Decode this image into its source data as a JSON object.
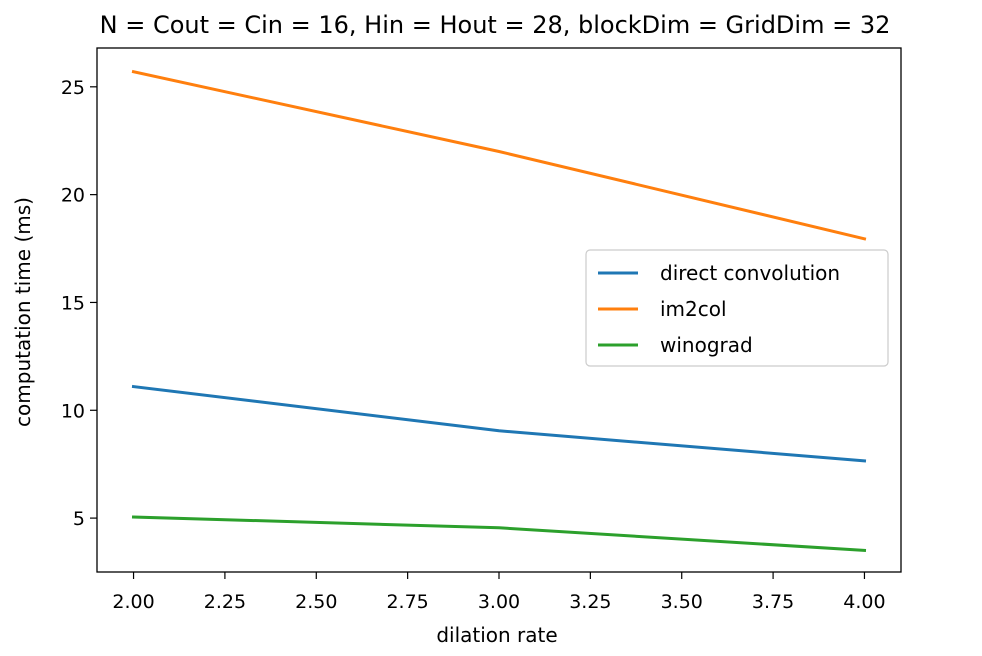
{
  "chart_data": {
    "type": "line",
    "title": "N = Cout = Cin = 16, Hin = Hout = 28, blockDim = GridDim = 32",
    "xlabel": "dilation rate",
    "ylabel": "computation time (ms)",
    "x": [
      2,
      3,
      4
    ],
    "xlim": [
      1.9,
      4.1
    ],
    "ylim": [
      2.5,
      26.8
    ],
    "xticks": [
      2.0,
      2.25,
      2.5,
      2.75,
      3.0,
      3.25,
      3.5,
      3.75,
      4.0
    ],
    "xtick_labels": [
      "2.00",
      "2.25",
      "2.50",
      "2.75",
      "3.00",
      "3.25",
      "3.50",
      "3.75",
      "4.00"
    ],
    "yticks": [
      5,
      10,
      15,
      20,
      25
    ],
    "ytick_labels": [
      "5",
      "10",
      "15",
      "20",
      "25"
    ],
    "grid": false,
    "legend_position": "center-right",
    "series": [
      {
        "name": "direct convolution",
        "color": "#1f77b4",
        "values": [
          11.1,
          9.05,
          7.65
        ]
      },
      {
        "name": "im2col",
        "color": "#ff7f0e",
        "values": [
          25.7,
          22.0,
          17.95
        ]
      },
      {
        "name": "winograd",
        "color": "#2ca02c",
        "values": [
          5.05,
          4.55,
          3.5
        ]
      }
    ]
  }
}
